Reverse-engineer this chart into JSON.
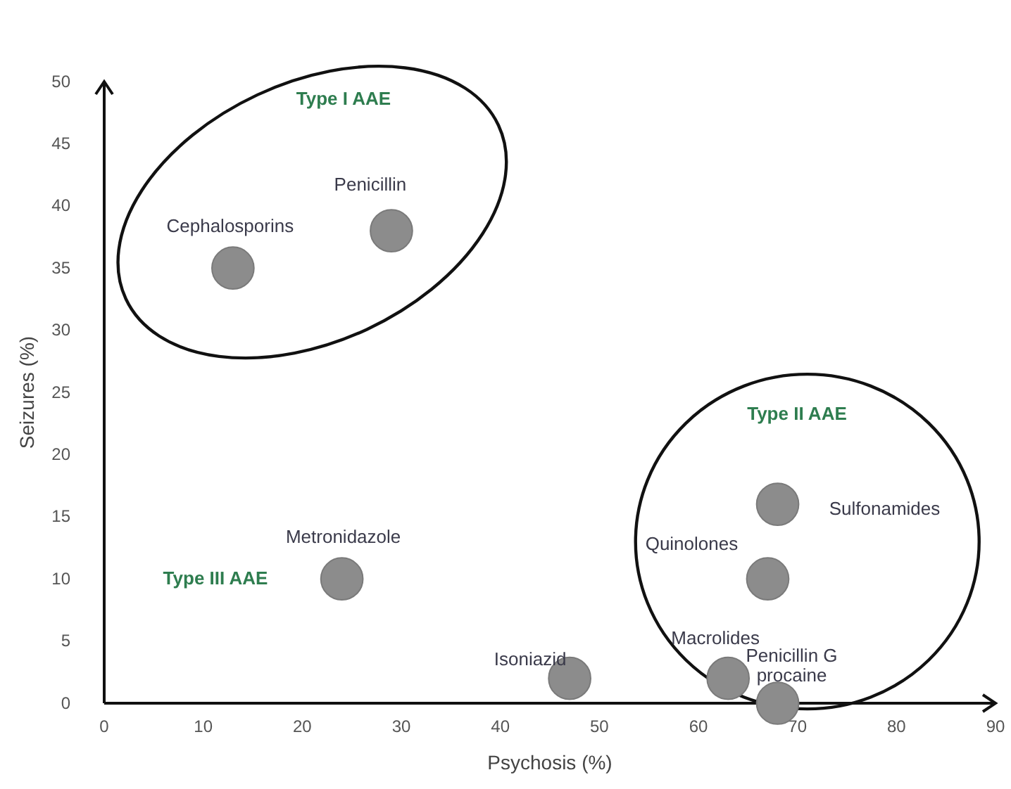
{
  "chart_data": {
    "type": "scatter",
    "xlabel": "Psychosis (%)",
    "ylabel": "Seizures (%)",
    "xlim": [
      0,
      90
    ],
    "xticks": [
      0,
      10,
      20,
      30,
      40,
      50,
      60,
      70,
      80,
      90
    ],
    "ylim": [
      0,
      50
    ],
    "yticks": [
      0,
      5,
      10,
      15,
      20,
      25,
      30,
      35,
      40,
      45,
      50
    ],
    "grid": false,
    "marker": "circle",
    "series": [
      {
        "color": "#8c8c8c",
        "x": [
          13,
          29,
          24,
          47,
          63,
          68,
          67,
          68
        ],
        "values": [
          35,
          38,
          10,
          2,
          2,
          0,
          10,
          16
        ]
      }
    ],
    "annotations": [
      "Type I AAE",
      "Type II AAE",
      "Type III AAE",
      {
        "text": "Cephalosporins",
        "x": 13,
        "y": 35
      },
      {
        "text": "Penicillin",
        "x": 29,
        "y": 38
      },
      {
        "text": "Metronidazole",
        "x": 24,
        "y": 10
      },
      {
        "text": "Isoniazid",
        "x": 47,
        "y": 2
      },
      {
        "text": "Macrolides",
        "x": 63,
        "y": 2
      },
      {
        "text": "Penicillin G\nprocaine",
        "x": 68,
        "y": 0
      },
      {
        "text": "Quinolones",
        "x": 67,
        "y": 10
      },
      {
        "text": "Sulfonamides",
        "x": 68,
        "y": 16
      }
    ]
  }
}
